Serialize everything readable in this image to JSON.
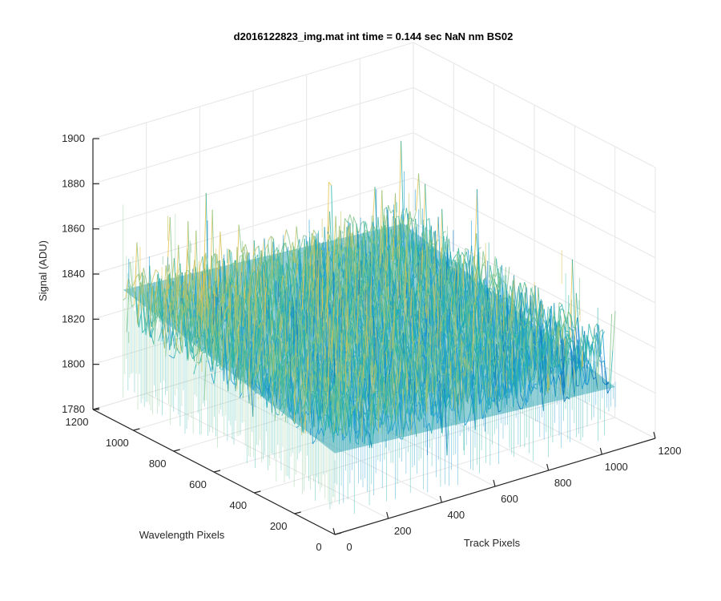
{
  "chart_data": {
    "type": "surface",
    "title": "d2016122823_img.mat int time = 0.144 sec  NaN nm BS02",
    "xlabel": "Track Pixels",
    "ylabel": "Wavelength Pixels",
    "zlabel": "Signal (ADU)",
    "xlim": [
      0,
      1200
    ],
    "ylim": [
      0,
      1200
    ],
    "zlim": [
      1780,
      1900
    ],
    "x_ticks": [
      "0",
      "200",
      "400",
      "600",
      "800",
      "1000",
      "1200"
    ],
    "y_ticks": [
      "0",
      "200",
      "400",
      "600",
      "800",
      "1000",
      "1200"
    ],
    "z_ticks": [
      "1780",
      "1800",
      "1820",
      "1840",
      "1860",
      "1880",
      "1900"
    ],
    "grid": true,
    "colormap": "parula",
    "colors": [
      "#0072BD",
      "#1B9BD3",
      "#27B1A8",
      "#7FC38A",
      "#C9C05A",
      "#E5C24A"
    ],
    "surface": {
      "x_range": [
        0,
        1050
      ],
      "y_range": [
        0,
        1050
      ],
      "mean_signal": 1828,
      "noise_range": [
        1800,
        1865
      ],
      "edge_signal_low": 1810,
      "edge_signal_high": 1840
    }
  }
}
